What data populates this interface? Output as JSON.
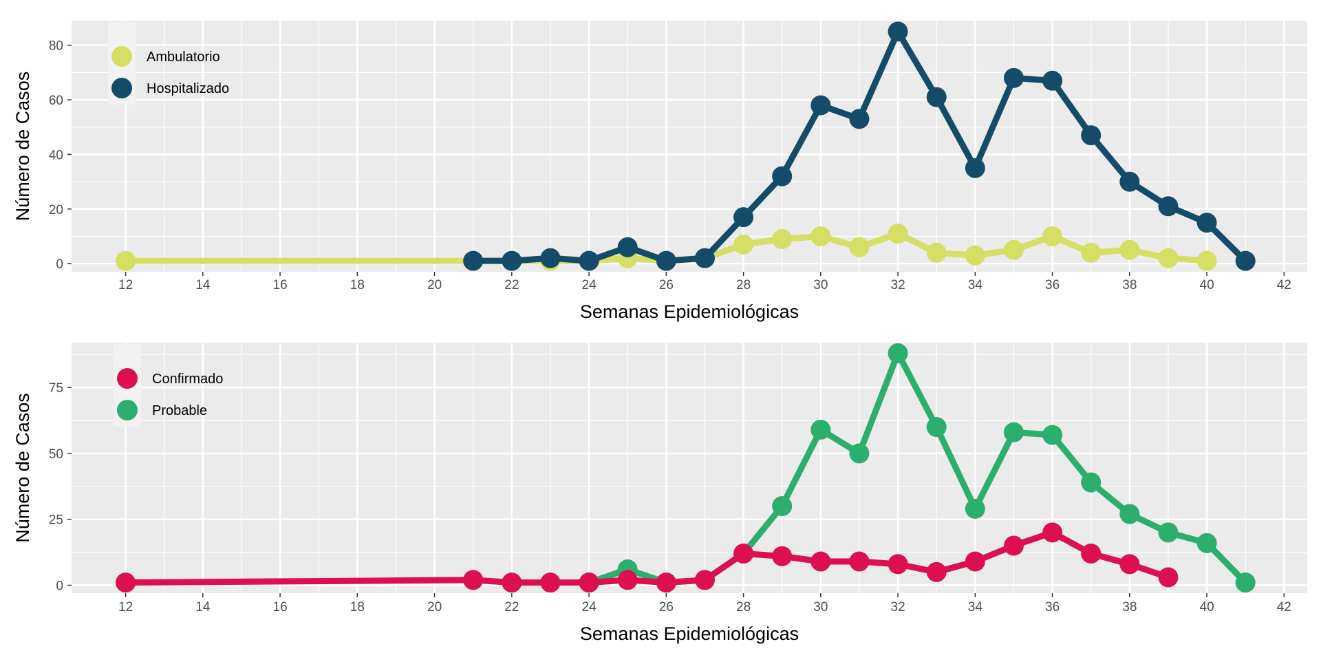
{
  "chart_data": [
    {
      "type": "line",
      "xlabel": "Semanas Epidemiológicas",
      "ylabel": "Número de Casos",
      "xlim": [
        10.6,
        42.6
      ],
      "ylim": [
        -3,
        89
      ],
      "xticks": [
        12,
        14,
        16,
        18,
        20,
        22,
        24,
        26,
        28,
        30,
        32,
        34,
        36,
        38,
        40,
        42
      ],
      "yticks": [
        0,
        20,
        40,
        60,
        80
      ],
      "grid": true,
      "legend_position": "top-left",
      "series": [
        {
          "name": "Ambulatorio",
          "color": "#D4DF63",
          "x": [
            12,
            21,
            22,
            23,
            24,
            25,
            26,
            27,
            28,
            29,
            30,
            31,
            32,
            33,
            34,
            35,
            36,
            37,
            38,
            39,
            40
          ],
          "values": [
            1,
            1,
            1,
            1,
            1,
            2,
            1,
            2,
            7,
            9,
            10,
            6,
            11,
            4,
            3,
            5,
            10,
            4,
            5,
            2,
            1
          ]
        },
        {
          "name": "Hospitalizado",
          "color": "#134B68",
          "x": [
            21,
            22,
            23,
            24,
            25,
            26,
            27,
            28,
            29,
            30,
            31,
            32,
            33,
            34,
            35,
            36,
            37,
            38,
            39,
            40,
            41
          ],
          "values": [
            1,
            1,
            2,
            1,
            6,
            1,
            2,
            17,
            32,
            58,
            53,
            85,
            61,
            35,
            68,
            67,
            47,
            30,
            21,
            15,
            1
          ]
        }
      ]
    },
    {
      "type": "line",
      "xlabel": "Semanas Epidemiológicas",
      "ylabel": "Número de Casos",
      "xlim": [
        10.6,
        42.6
      ],
      "ylim": [
        -3,
        92
      ],
      "xticks": [
        12,
        14,
        16,
        18,
        20,
        22,
        24,
        26,
        28,
        30,
        32,
        34,
        36,
        38,
        40,
        42
      ],
      "yticks": [
        0,
        25,
        50,
        75
      ],
      "grid": true,
      "legend_position": "top-left",
      "series": [
        {
          "name": "Probable",
          "color": "#2BAE6E",
          "x": [
            24,
            25,
            26,
            27,
            28,
            29,
            30,
            31,
            32,
            33,
            34,
            35,
            36,
            37,
            38,
            39,
            40,
            41
          ],
          "values": [
            1,
            6,
            1,
            2,
            12,
            30,
            59,
            50,
            88,
            60,
            29,
            58,
            57,
            39,
            27,
            20,
            16,
            1
          ]
        },
        {
          "name": "Confirmado",
          "color": "#DC0F50",
          "x": [
            12,
            21,
            22,
            23,
            24,
            25,
            26,
            27,
            28,
            29,
            30,
            31,
            32,
            33,
            34,
            35,
            36,
            37,
            38,
            39
          ],
          "values": [
            1,
            2,
            1,
            1,
            1,
            2,
            1,
            2,
            12,
            11,
            9,
            9,
            8,
            5,
            9,
            15,
            20,
            12,
            8,
            3
          ]
        }
      ],
      "legend_order": [
        "Confirmado",
        "Probable"
      ]
    }
  ]
}
